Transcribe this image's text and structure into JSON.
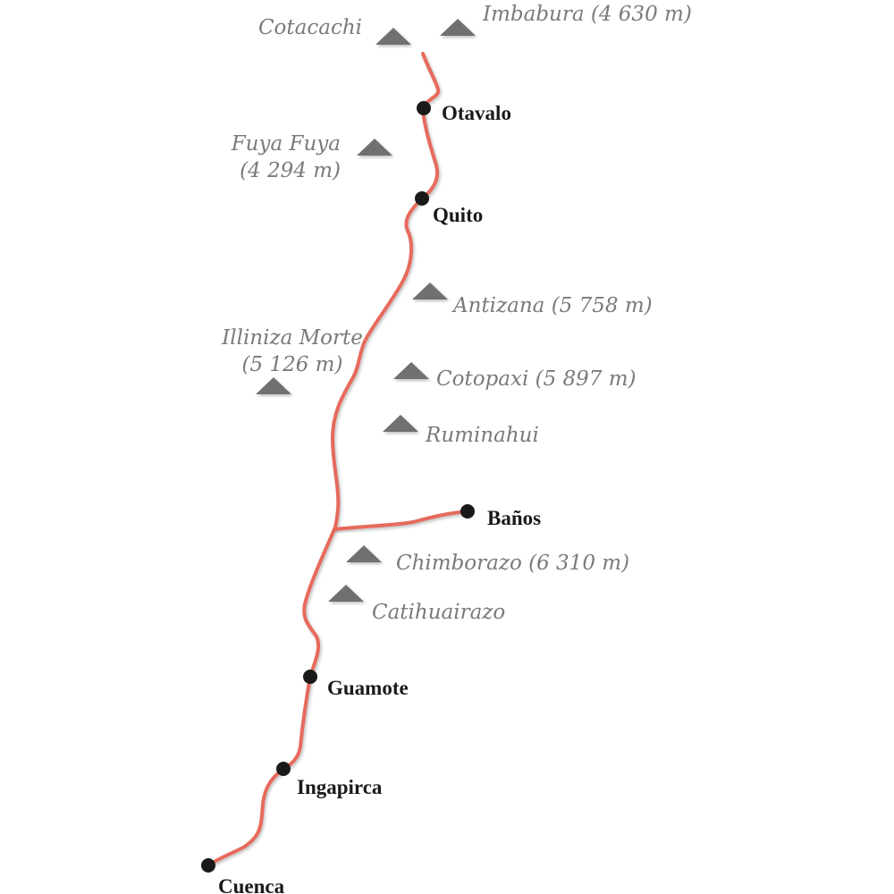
{
  "colors": {
    "route": "#e66a5c",
    "peak": "#6f6f6f",
    "peak_label": "#7a7a7a",
    "city": "#1a1a1a"
  },
  "cities": [
    {
      "name": "Otavalo"
    },
    {
      "name": "Quito"
    },
    {
      "name": "Baños"
    },
    {
      "name": "Guamote"
    },
    {
      "name": "Ingapirca"
    },
    {
      "name": "Cuenca"
    }
  ],
  "peaks": [
    {
      "lines": [
        "Cotacachi"
      ]
    },
    {
      "lines": [
        "Imbabura (4 630 m)"
      ]
    },
    {
      "lines": [
        "Fuya Fuya",
        "(4 294 m)"
      ]
    },
    {
      "lines": [
        "Antizana (5 758 m)"
      ]
    },
    {
      "lines": [
        "Illiniza Morte",
        "(5 126 m)"
      ]
    },
    {
      "lines": [
        "Cotopaxi (5 897 m)"
      ]
    },
    {
      "lines": [
        "Ruminahui"
      ]
    },
    {
      "lines": [
        "Chimborazo (6 310 m)"
      ]
    },
    {
      "lines": [
        "Catihuairazo"
      ]
    }
  ]
}
